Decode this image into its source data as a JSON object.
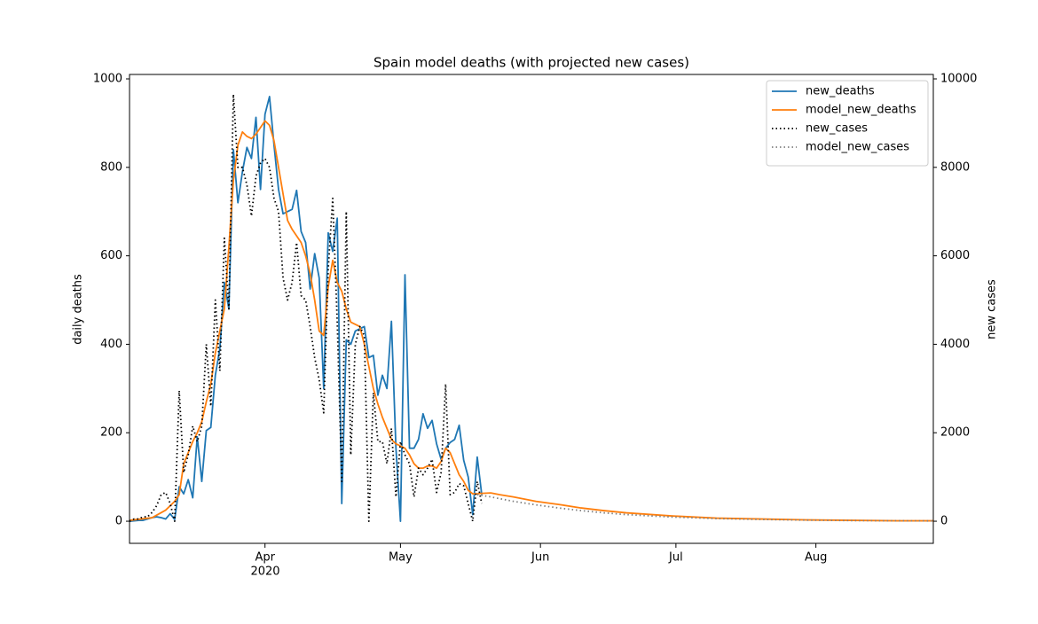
{
  "chart_data": {
    "type": "line",
    "title": "Spain model deaths (with projected new cases)",
    "y_label": "daily deaths",
    "y2_label": "new cases",
    "x_year_label": "2020",
    "x": [
      "2020-03-02",
      "2020-03-03",
      "2020-03-04",
      "2020-03-05",
      "2020-03-06",
      "2020-03-07",
      "2020-03-08",
      "2020-03-09",
      "2020-03-10",
      "2020-03-11",
      "2020-03-12",
      "2020-03-13",
      "2020-03-14",
      "2020-03-15",
      "2020-03-16",
      "2020-03-17",
      "2020-03-18",
      "2020-03-19",
      "2020-03-20",
      "2020-03-21",
      "2020-03-22",
      "2020-03-23",
      "2020-03-24",
      "2020-03-25",
      "2020-03-26",
      "2020-03-27",
      "2020-03-28",
      "2020-03-29",
      "2020-03-30",
      "2020-03-31",
      "2020-04-01",
      "2020-04-02",
      "2020-04-03",
      "2020-04-04",
      "2020-04-05",
      "2020-04-06",
      "2020-04-07",
      "2020-04-08",
      "2020-04-09",
      "2020-04-10",
      "2020-04-11",
      "2020-04-12",
      "2020-04-13",
      "2020-04-14",
      "2020-04-15",
      "2020-04-16",
      "2020-04-17",
      "2020-04-18",
      "2020-04-19",
      "2020-04-20",
      "2020-04-21",
      "2020-04-22",
      "2020-04-23",
      "2020-04-24",
      "2020-04-25",
      "2020-04-26",
      "2020-04-27",
      "2020-04-28",
      "2020-04-29",
      "2020-04-30",
      "2020-05-01",
      "2020-05-02",
      "2020-05-03",
      "2020-05-04",
      "2020-05-05",
      "2020-05-06",
      "2020-05-07",
      "2020-05-08",
      "2020-05-09",
      "2020-05-10",
      "2020-05-11",
      "2020-05-12",
      "2020-05-13",
      "2020-05-14",
      "2020-05-15",
      "2020-05-16",
      "2020-05-17",
      "2020-05-18",
      "2020-05-19"
    ],
    "series": [
      {
        "name": "new_deaths",
        "color": "#1f77b4",
        "style": "solid",
        "axis": "y",
        "values": [
          0,
          1,
          2,
          2,
          5,
          8,
          10,
          8,
          5,
          17,
          4,
          78,
          62,
          94,
          53,
          191,
          90,
          205,
          212,
          330,
          390,
          540,
          480,
          840,
          720,
          790,
          845,
          820,
          913,
          750,
          920,
          960,
          850,
          750,
          695,
          700,
          705,
          748,
          655,
          630,
          525,
          605,
          550,
          300,
          652,
          610,
          685,
          40,
          410,
          400,
          430,
          435,
          440,
          370,
          375,
          285,
          330,
          300,
          452,
          165,
          0,
          557,
          165,
          165,
          185,
          243,
          210,
          228,
          175,
          140,
          165,
          178,
          185,
          217,
          138,
          100,
          15,
          145,
          60
        ]
      },
      {
        "name": "model_new_deaths",
        "color": "#ff7f0e",
        "style": "solid",
        "axis": "y",
        "x": [
          "2020-03-02",
          "2020-03-07",
          "2020-03-10",
          "2020-03-12",
          "2020-03-13",
          "2020-03-14",
          "2020-03-15",
          "2020-03-16",
          "2020-03-17",
          "2020-03-18",
          "2020-03-19",
          "2020-03-20",
          "2020-03-21",
          "2020-03-22",
          "2020-03-23",
          "2020-03-24",
          "2020-03-25",
          "2020-03-26",
          "2020-03-27",
          "2020-03-28",
          "2020-03-29",
          "2020-03-30",
          "2020-03-31",
          "2020-04-01",
          "2020-04-02",
          "2020-04-03",
          "2020-04-04",
          "2020-04-05",
          "2020-04-06",
          "2020-04-07",
          "2020-04-08",
          "2020-04-09",
          "2020-04-10",
          "2020-04-11",
          "2020-04-12",
          "2020-04-13",
          "2020-04-14",
          "2020-04-15",
          "2020-04-16",
          "2020-04-17",
          "2020-04-18",
          "2020-04-19",
          "2020-04-20",
          "2020-04-21",
          "2020-04-22",
          "2020-04-23",
          "2020-04-24",
          "2020-04-25",
          "2020-04-26",
          "2020-04-27",
          "2020-04-28",
          "2020-04-29",
          "2020-04-30",
          "2020-05-01",
          "2020-05-02",
          "2020-05-03",
          "2020-05-04",
          "2020-05-05",
          "2020-05-06",
          "2020-05-07",
          "2020-05-08",
          "2020-05-09",
          "2020-05-10",
          "2020-05-11",
          "2020-05-12",
          "2020-05-13",
          "2020-05-14",
          "2020-05-15",
          "2020-05-16",
          "2020-05-17",
          "2020-05-18",
          "2020-05-19",
          "2020-05-21",
          "2020-05-23",
          "2020-05-26",
          "2020-05-31",
          "2020-06-05",
          "2020-06-10",
          "2020-06-15",
          "2020-06-20",
          "2020-06-30",
          "2020-07-10",
          "2020-07-20",
          "2020-07-30",
          "2020-08-09",
          "2020-08-19",
          "2020-08-27"
        ],
        "values": [
          2,
          8,
          25,
          45,
          60,
          130,
          155,
          180,
          200,
          225,
          270,
          310,
          380,
          430,
          480,
          620,
          770,
          850,
          880,
          870,
          865,
          875,
          890,
          905,
          895,
          860,
          800,
          740,
          680,
          660,
          645,
          630,
          600,
          560,
          500,
          430,
          420,
          530,
          590,
          540,
          520,
          480,
          450,
          445,
          440,
          400,
          350,
          300,
          265,
          235,
          210,
          185,
          175,
          170,
          165,
          150,
          130,
          120,
          120,
          125,
          125,
          120,
          135,
          165,
          155,
          130,
          105,
          90,
          70,
          62,
          62,
          63,
          64,
          60,
          55,
          45,
          38,
          30,
          24,
          19,
          12,
          7,
          5,
          3,
          2,
          1,
          1
        ]
      },
      {
        "name": "new_cases",
        "color": "#000000",
        "style": "dotted",
        "axis": "y2",
        "values": [
          0,
          50,
          50,
          100,
          100,
          200,
          350,
          600,
          650,
          400,
          0,
          2950,
          1100,
          1500,
          2150,
          1800,
          2150,
          4000,
          2600,
          5000,
          3400,
          6400,
          4800,
          9650,
          8000,
          8000,
          7600,
          6900,
          7800,
          8100,
          8200,
          8000,
          7300,
          7000,
          5500,
          5000,
          5400,
          6300,
          5100,
          5000,
          4400,
          3700,
          3200,
          2450,
          5700,
          7300,
          4500,
          900,
          7000,
          1500,
          4000,
          4400,
          4200,
          0,
          2900,
          1800,
          1800,
          1300,
          2100,
          550,
          1800,
          1500,
          1300,
          550,
          1200,
          1050,
          1200,
          1400,
          650,
          1100,
          3100,
          600,
          650,
          850,
          800,
          400,
          0,
          900,
          400
        ]
      },
      {
        "name": "model_new_cases",
        "color": "#808080",
        "style": "dotted",
        "axis": "y2",
        "x": [
          "2020-05-18",
          "2020-05-21",
          "2020-05-26",
          "2020-05-31",
          "2020-06-05",
          "2020-06-10",
          "2020-06-15",
          "2020-06-20",
          "2020-06-30",
          "2020-07-10",
          "2020-07-20",
          "2020-07-30",
          "2020-08-09",
          "2020-08-19",
          "2020-08-27"
        ],
        "values": [
          600,
          550,
          450,
          370,
          300,
          240,
          190,
          150,
          95,
          60,
          40,
          25,
          15,
          10,
          7
        ]
      }
    ],
    "xlim": [
      "2020-03-02",
      "2020-08-27"
    ],
    "xticks": [
      {
        "value": "2020-04-01",
        "label": "Apr"
      },
      {
        "value": "2020-05-01",
        "label": "May"
      },
      {
        "value": "2020-06-01",
        "label": "Jun"
      },
      {
        "value": "2020-07-01",
        "label": "Jul"
      },
      {
        "value": "2020-08-01",
        "label": "Aug"
      }
    ],
    "ylim": [
      -50,
      1010
    ],
    "yticks": [
      0,
      200,
      400,
      600,
      800,
      1000
    ],
    "y2lim": [
      -500,
      10100
    ],
    "y2ticks": [
      0,
      2000,
      4000,
      6000,
      8000,
      10000
    ],
    "legend": "upper right",
    "grid": false
  }
}
